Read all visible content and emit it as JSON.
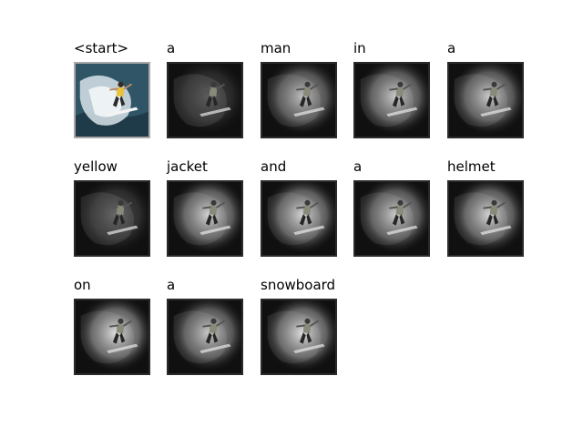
{
  "tokens": [
    {
      "word": "<start>",
      "attention": 0.0,
      "original": true
    },
    {
      "word": "a",
      "attention": 0.25
    },
    {
      "word": "man",
      "attention": 0.7
    },
    {
      "word": "in",
      "attention": 0.75
    },
    {
      "word": "a",
      "attention": 0.75
    },
    {
      "word": "yellow",
      "attention": 0.3
    },
    {
      "word": "jacket",
      "attention": 0.8
    },
    {
      "word": "and",
      "attention": 0.8
    },
    {
      "word": "a",
      "attention": 0.75
    },
    {
      "word": "helmet",
      "attention": 0.8
    },
    {
      "word": "on",
      "attention": 0.85
    },
    {
      "word": "a",
      "attention": 0.75
    },
    {
      "word": "snowboard",
      "attention": 0.85
    }
  ]
}
